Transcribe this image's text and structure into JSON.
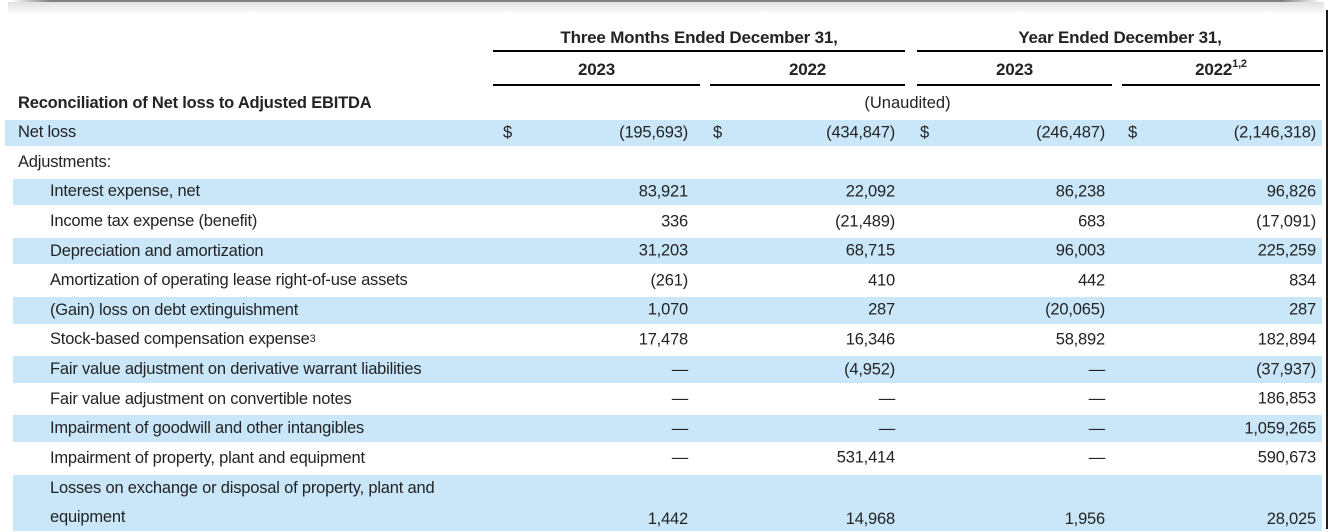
{
  "colors": {
    "highlight": "#c9e7f8",
    "text": "#232325",
    "rule": "#000000"
  },
  "header": {
    "col_groups": [
      {
        "label": "Three Months Ended December 31,"
      },
      {
        "label": "Year Ended December 31,"
      }
    ],
    "year_cols": [
      {
        "label": "2023",
        "sup": ""
      },
      {
        "label": "2022",
        "sup": ""
      },
      {
        "label": "2023",
        "sup": ""
      },
      {
        "label": "2022",
        "sup": "1,2"
      }
    ],
    "section_title": "Reconciliation of Net loss to Adjusted EBITDA",
    "unaudited_note": "(Unaudited)"
  },
  "table": {
    "dollar_sign": "$",
    "rows": [
      {
        "label": "Net loss",
        "label_sup": "",
        "indent": 0,
        "highlight": true,
        "dollar": true,
        "two_line": false,
        "values": [
          "(195,693)",
          "(434,847)",
          "(246,487)",
          "(2,146,318)"
        ]
      },
      {
        "label": "Adjustments:",
        "label_sup": "",
        "indent": 0,
        "highlight": false,
        "dollar": false,
        "two_line": false,
        "values": [
          "",
          "",
          "",
          ""
        ]
      },
      {
        "label": "Interest expense, net",
        "label_sup": "",
        "indent": 1,
        "highlight": true,
        "dollar": false,
        "two_line": false,
        "values": [
          "83,921",
          "22,092",
          "86,238",
          "96,826"
        ]
      },
      {
        "label": "Income tax expense (benefit)",
        "label_sup": "",
        "indent": 1,
        "highlight": false,
        "dollar": false,
        "two_line": false,
        "values": [
          "336",
          "(21,489)",
          "683",
          "(17,091)"
        ]
      },
      {
        "label": "Depreciation and amortization",
        "label_sup": "",
        "indent": 1,
        "highlight": true,
        "dollar": false,
        "two_line": false,
        "values": [
          "31,203",
          "68,715",
          "96,003",
          "225,259"
        ]
      },
      {
        "label": "Amortization of operating lease right-of-use assets",
        "label_sup": "",
        "indent": 1,
        "highlight": false,
        "dollar": false,
        "two_line": false,
        "values": [
          "(261)",
          "410",
          "442",
          "834"
        ]
      },
      {
        "label": "(Gain) loss on debt extinguishment",
        "label_sup": "",
        "indent": 1,
        "highlight": true,
        "dollar": false,
        "two_line": false,
        "values": [
          "1,070",
          "287",
          "(20,065)",
          "287"
        ]
      },
      {
        "label": "Stock-based compensation expense",
        "label_sup": "3",
        "indent": 1,
        "highlight": false,
        "dollar": false,
        "two_line": false,
        "values": [
          "17,478",
          "16,346",
          "58,892",
          "182,894"
        ]
      },
      {
        "label": "Fair value adjustment on derivative warrant liabilities",
        "label_sup": "",
        "indent": 1,
        "highlight": true,
        "dollar": false,
        "two_line": false,
        "values": [
          "—",
          "(4,952)",
          "—",
          "(37,937)"
        ]
      },
      {
        "label": "Fair value adjustment on convertible notes",
        "label_sup": "",
        "indent": 1,
        "highlight": false,
        "dollar": false,
        "two_line": false,
        "values": [
          "—",
          "—",
          "—",
          "186,853"
        ]
      },
      {
        "label": "Impairment of goodwill and other intangibles",
        "label_sup": "",
        "indent": 1,
        "highlight": true,
        "dollar": false,
        "two_line": false,
        "values": [
          "—",
          "—",
          "—",
          "1,059,265"
        ]
      },
      {
        "label": "Impairment of property, plant and equipment",
        "label_sup": "",
        "indent": 1,
        "highlight": false,
        "dollar": false,
        "two_line": false,
        "values": [
          "—",
          "531,414",
          "—",
          "590,673"
        ]
      },
      {
        "label": "Losses on exchange or disposal of property, plant and equipment",
        "label_sup": "",
        "indent": 1,
        "highlight": true,
        "dollar": false,
        "two_line": true,
        "values": [
          "1,442",
          "14,968",
          "1,956",
          "28,025"
        ]
      }
    ]
  }
}
